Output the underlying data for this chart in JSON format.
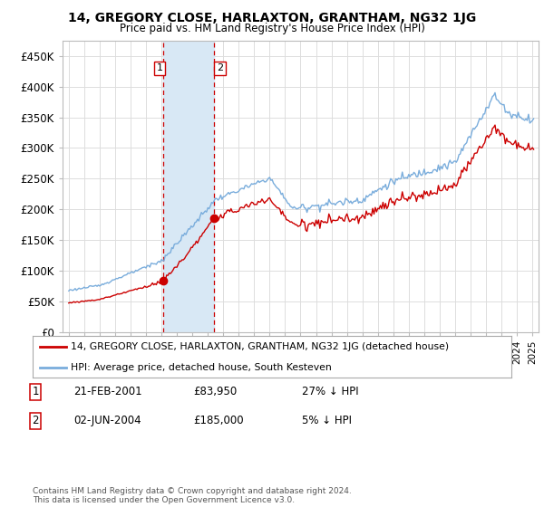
{
  "title": "14, GREGORY CLOSE, HARLAXTON, GRANTHAM, NG32 1JG",
  "subtitle": "Price paid vs. HM Land Registry's House Price Index (HPI)",
  "legend_line1": "14, GREGORY CLOSE, HARLAXTON, GRANTHAM, NG32 1JG (detached house)",
  "legend_line2": "HPI: Average price, detached house, South Kesteven",
  "sale1_date": "21-FEB-2001",
  "sale1_price": "£83,950",
  "sale1_hpi": "27% ↓ HPI",
  "sale2_date": "02-JUN-2004",
  "sale2_price": "£185,000",
  "sale2_hpi": "5% ↓ HPI",
  "footer": "Contains HM Land Registry data © Crown copyright and database right 2024.\nThis data is licensed under the Open Government Licence v3.0.",
  "hpi_color": "#7aaddc",
  "price_color": "#cc0000",
  "shade_color": "#d8e8f5",
  "sale_marker_color": "#cc0000",
  "vline_color": "#cc0000",
  "ylim": [
    0,
    475000
  ],
  "yticks": [
    0,
    50000,
    100000,
    150000,
    200000,
    250000,
    300000,
    350000,
    400000,
    450000
  ],
  "background_color": "#ffffff",
  "grid_color": "#dddddd",
  "sale1_year": 2001.12,
  "sale2_year": 2004.42,
  "sale1_price_val": 83950,
  "sale2_price_val": 185000
}
